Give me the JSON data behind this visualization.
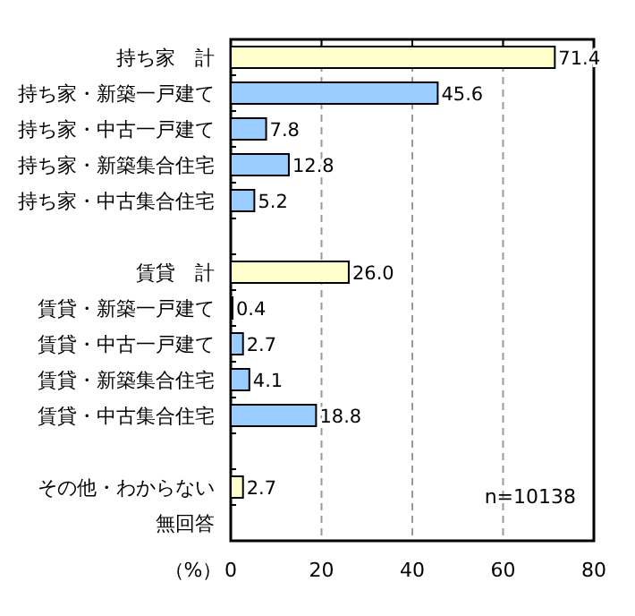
{
  "chart_data": {
    "type": "bar",
    "orientation": "horizontal",
    "categories": [
      "持ち家　計",
      "持ち家・新築一戸建て",
      "持ち家・中古一戸建て",
      "持ち家・新築集合住宅",
      "持ち家・中古集合住宅",
      null,
      "賃貸　計",
      "賃貸・新築一戸建て",
      "賃貸・中古一戸建て",
      "賃貸・新築集合住宅",
      "賃貸・中古集合住宅",
      null,
      "その他・わからない",
      "無回答"
    ],
    "values": [
      71.4,
      45.6,
      7.8,
      12.8,
      5.2,
      null,
      26.0,
      0.4,
      2.7,
      4.1,
      18.8,
      null,
      2.7,
      null
    ],
    "value_labels": [
      "71.4",
      "45.6",
      "7.8",
      "12.8",
      "5.2",
      null,
      "26.0",
      "0.4",
      "2.7",
      "4.1",
      "18.8",
      null,
      "2.7",
      null
    ],
    "colors": [
      "#ffffcc",
      "#99ccff",
      "#99ccff",
      "#99ccff",
      "#99ccff",
      null,
      "#ffffcc",
      "#99ccff",
      "#99ccff",
      "#99ccff",
      "#99ccff",
      null,
      "#ffffcc",
      null
    ],
    "xlim": [
      0,
      80
    ],
    "xticks": [
      0,
      20,
      40,
      60,
      80
    ],
    "xlabel": "（%）",
    "grid": "x",
    "annotations": [
      "n=10138"
    ]
  }
}
